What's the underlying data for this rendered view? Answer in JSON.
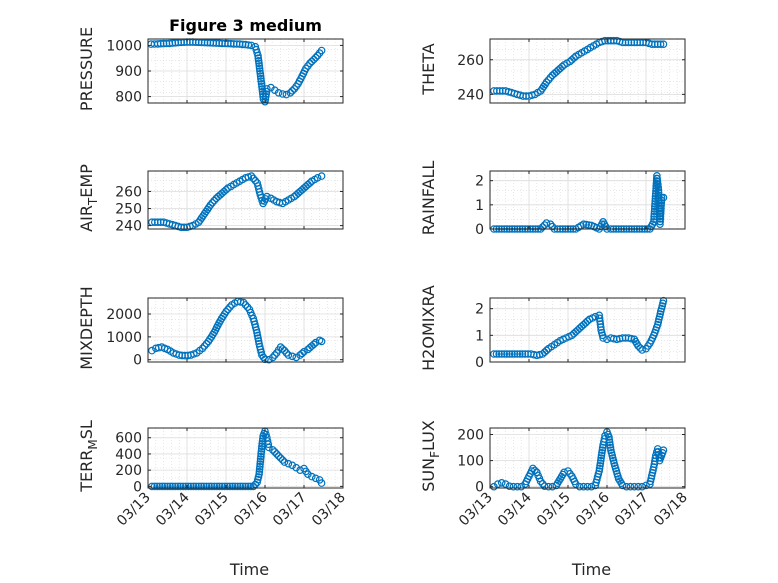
{
  "figure": {
    "background": "#ffffff",
    "marker_color": "#0072BD",
    "marker": "circle-open",
    "grid": true,
    "minor_grid": true
  },
  "chart_data": [
    {
      "type": "scatter",
      "title": "Figure 3 medium",
      "ylabel": "PRESSURE",
      "xlabel": "",
      "xlim": [
        0,
        5
      ],
      "ylim": [
        775,
        1025
      ],
      "yticks": [
        800,
        900,
        1000
      ],
      "xticks": [
        0,
        1,
        2,
        3,
        4,
        5
      ],
      "xticklabels": [],
      "series": [
        {
          "x": [
            0.08,
            0.25,
            0.4,
            0.55,
            0.7,
            0.85,
            1.0,
            1.15,
            1.3,
            1.45,
            1.6,
            1.75,
            1.9,
            2.05,
            2.2,
            2.35,
            2.5,
            2.65,
            2.75,
            2.82,
            2.87,
            2.92,
            2.96,
            3.0,
            3.05,
            3.15,
            3.25,
            3.35,
            3.45,
            3.55,
            3.65,
            3.75,
            3.85,
            3.95,
            4.05,
            4.15,
            4.25,
            4.35,
            4.45
          ],
          "y": [
            1005,
            1006,
            1007,
            1008,
            1010,
            1012,
            1013,
            1013,
            1012,
            1011,
            1010,
            1009,
            1008,
            1007,
            1006,
            1005,
            1003,
            1000,
            995,
            960,
            900,
            840,
            790,
            780,
            830,
            835,
            825,
            815,
            810,
            808,
            815,
            830,
            850,
            880,
            910,
            930,
            945,
            960,
            980
          ]
        }
      ]
    },
    {
      "type": "scatter",
      "title": "",
      "ylabel": "THETA",
      "xlabel": "",
      "xlim": [
        0,
        5
      ],
      "ylim": [
        235,
        272
      ],
      "yticks": [
        240,
        260
      ],
      "xticks": [
        0,
        1,
        2,
        3,
        4,
        5
      ],
      "xticklabels": [],
      "series": [
        {
          "x": [
            0.1,
            0.25,
            0.4,
            0.55,
            0.7,
            0.85,
            1.0,
            1.15,
            1.3,
            1.45,
            1.6,
            1.75,
            1.9,
            2.05,
            2.2,
            2.35,
            2.5,
            2.65,
            2.8,
            2.95,
            3.1,
            3.25,
            3.4,
            3.55,
            3.7,
            3.85,
            4.0,
            4.15,
            4.3,
            4.45
          ],
          "y": [
            242,
            242,
            242,
            241,
            240,
            239,
            239,
            240,
            242,
            247,
            251,
            254,
            257,
            259,
            262,
            264,
            266,
            268,
            270,
            271,
            271,
            271,
            270,
            270,
            270,
            270,
            270,
            269,
            269,
            269
          ]
        }
      ]
    },
    {
      "type": "scatter",
      "title": "",
      "ylabel": "AIR_TEMP",
      "xlabel": "",
      "xlim": [
        0,
        5
      ],
      "ylim": [
        238,
        272
      ],
      "yticks": [
        240,
        250,
        260
      ],
      "xticks": [
        0,
        1,
        2,
        3,
        4,
        5
      ],
      "xticklabels": [],
      "series": [
        {
          "x": [
            0.1,
            0.25,
            0.4,
            0.55,
            0.7,
            0.85,
            1.0,
            1.15,
            1.3,
            1.45,
            1.6,
            1.75,
            1.9,
            2.05,
            2.2,
            2.35,
            2.5,
            2.65,
            2.8,
            2.88,
            2.95,
            3.05,
            3.15,
            3.3,
            3.45,
            3.6,
            3.75,
            3.9,
            4.05,
            4.2,
            4.35,
            4.45
          ],
          "y": [
            242,
            242,
            242,
            241,
            240,
            239,
            239,
            240,
            242,
            247,
            252,
            256,
            259,
            262,
            264,
            266,
            268,
            269,
            265,
            258,
            253,
            257,
            256,
            254,
            253,
            255,
            257,
            260,
            263,
            266,
            268,
            269
          ]
        }
      ]
    },
    {
      "type": "scatter",
      "title": "",
      "ylabel": "RAINFALL",
      "xlabel": "",
      "xlim": [
        0,
        5
      ],
      "ylim": [
        0,
        2.4
      ],
      "yticks": [
        0,
        1,
        2
      ],
      "xticks": [
        0,
        1,
        2,
        3,
        4,
        5
      ],
      "xticklabels": [],
      "series": [
        {
          "x": [
            0.1,
            0.3,
            0.5,
            0.7,
            0.9,
            1.1,
            1.3,
            1.45,
            1.55,
            1.65,
            1.8,
            2.0,
            2.2,
            2.4,
            2.6,
            2.8,
            2.9,
            3.0,
            3.1,
            3.3,
            3.5,
            3.7,
            3.9,
            4.1,
            4.2,
            4.28,
            4.32,
            4.36,
            4.4,
            4.45
          ],
          "y": [
            0,
            0,
            0,
            0,
            0,
            0,
            0,
            0.25,
            0.2,
            0,
            0,
            0,
            0,
            0.2,
            0.15,
            0,
            0.3,
            0,
            0,
            0,
            0,
            0,
            0,
            0,
            0.3,
            2.2,
            1.6,
            0.2,
            1.3,
            1.3
          ]
        }
      ]
    },
    {
      "type": "scatter",
      "title": "",
      "ylabel": "MIXDEPTH",
      "xlabel": "",
      "xlim": [
        0,
        5
      ],
      "ylim": [
        -100,
        2700
      ],
      "yticks": [
        0,
        1000,
        2000
      ],
      "xticks": [
        0,
        1,
        2,
        3,
        4,
        5
      ],
      "xticklabels": [],
      "series": [
        {
          "x": [
            0.1,
            0.2,
            0.35,
            0.5,
            0.65,
            0.8,
            0.95,
            1.1,
            1.25,
            1.4,
            1.55,
            1.7,
            1.85,
            2.0,
            2.15,
            2.3,
            2.45,
            2.6,
            2.7,
            2.78,
            2.85,
            2.92,
            3.0,
            3.1,
            3.2,
            3.3,
            3.4,
            3.5,
            3.6,
            3.7,
            3.8,
            3.9,
            4.0,
            4.1,
            4.2,
            4.3,
            4.4,
            4.45
          ],
          "y": [
            400,
            500,
            550,
            450,
            300,
            200,
            180,
            200,
            300,
            500,
            800,
            1200,
            1700,
            2100,
            2400,
            2550,
            2500,
            2200,
            1800,
            1300,
            700,
            200,
            20,
            0,
            100,
            300,
            550,
            400,
            200,
            150,
            100,
            200,
            350,
            450,
            600,
            750,
            850,
            800
          ]
        }
      ]
    },
    {
      "type": "scatter",
      "title": "",
      "ylabel": "H2OMIXRA",
      "xlabel": "",
      "xlim": [
        0,
        5
      ],
      "ylim": [
        0,
        2.4
      ],
      "yticks": [
        0,
        1,
        2
      ],
      "xticks": [
        0,
        1,
        2,
        3,
        4,
        5
      ],
      "xticklabels": [],
      "series": [
        {
          "x": [
            0.1,
            0.3,
            0.5,
            0.7,
            0.9,
            1.05,
            1.2,
            1.35,
            1.5,
            1.65,
            1.8,
            1.95,
            2.1,
            2.25,
            2.4,
            2.55,
            2.7,
            2.8,
            2.85,
            2.9,
            3.0,
            3.1,
            3.25,
            3.4,
            3.55,
            3.7,
            3.8,
            3.9,
            4.0,
            4.1,
            4.2,
            4.3,
            4.38,
            4.45
          ],
          "y": [
            0.3,
            0.3,
            0.3,
            0.3,
            0.3,
            0.3,
            0.25,
            0.3,
            0.5,
            0.65,
            0.8,
            0.9,
            1.0,
            1.2,
            1.4,
            1.6,
            1.7,
            1.75,
            1.2,
            0.9,
            0.85,
            0.9,
            0.85,
            0.9,
            0.9,
            0.85,
            0.6,
            0.45,
            0.5,
            0.7,
            1.0,
            1.4,
            1.9,
            2.3
          ]
        }
      ]
    },
    {
      "type": "scatter",
      "title": "",
      "ylabel": "TERR_MSL",
      "xlabel": "Time",
      "xlim": [
        0,
        5
      ],
      "ylim": [
        -20,
        720
      ],
      "yticks": [
        0,
        200,
        400,
        600
      ],
      "xticks": [
        0,
        1,
        2,
        3,
        4,
        5
      ],
      "xticklabels": [
        "03/13",
        "03/14",
        "03/15",
        "03/16",
        "03/17",
        "03/18"
      ],
      "series": [
        {
          "x": [
            0.1,
            0.3,
            0.5,
            0.7,
            0.9,
            1.1,
            1.3,
            1.5,
            1.7,
            1.9,
            2.1,
            2.3,
            2.5,
            2.7,
            2.8,
            2.85,
            2.9,
            2.95,
            3.0,
            3.05,
            3.1,
            3.2,
            3.3,
            3.4,
            3.5,
            3.6,
            3.7,
            3.8,
            3.9,
            4.0,
            4.1,
            4.2,
            4.3,
            4.4,
            4.45
          ],
          "y": [
            0,
            0,
            0,
            0,
            0,
            0,
            0,
            0,
            0,
            0,
            0,
            0,
            0,
            0,
            50,
            150,
            400,
            620,
            680,
            600,
            480,
            450,
            400,
            350,
            300,
            280,
            260,
            230,
            200,
            220,
            150,
            120,
            100,
            80,
            40
          ]
        }
      ]
    },
    {
      "type": "scatter",
      "title": "",
      "ylabel": "SUN_FLUX",
      "xlabel": "Time",
      "xlim": [
        0,
        5
      ],
      "ylim": [
        -5,
        225
      ],
      "yticks": [
        0,
        100,
        200
      ],
      "xticks": [
        0,
        1,
        2,
        3,
        4,
        5
      ],
      "xticklabels": [
        "03/13",
        "03/14",
        "03/15",
        "03/16",
        "03/17",
        "03/18"
      ],
      "series": [
        {
          "x": [
            0.1,
            0.2,
            0.3,
            0.4,
            0.5,
            0.6,
            0.7,
            0.8,
            0.9,
            1.0,
            1.1,
            1.2,
            1.3,
            1.4,
            1.5,
            1.6,
            1.7,
            1.8,
            1.9,
            2.0,
            2.1,
            2.2,
            2.3,
            2.4,
            2.5,
            2.6,
            2.7,
            2.8,
            2.85,
            2.9,
            2.95,
            3.0,
            3.05,
            3.1,
            3.2,
            3.3,
            3.4,
            3.5,
            3.6,
            3.7,
            3.8,
            3.9,
            4.0,
            4.1,
            4.2,
            4.25,
            4.3,
            4.35,
            4.4,
            4.45
          ],
          "y": [
            0,
            10,
            15,
            10,
            2,
            0,
            0,
            0,
            10,
            40,
            70,
            55,
            20,
            2,
            0,
            0,
            5,
            30,
            55,
            60,
            40,
            10,
            0,
            0,
            0,
            0,
            5,
            60,
            110,
            160,
            195,
            210,
            190,
            140,
            80,
            30,
            5,
            0,
            0,
            0,
            0,
            0,
            5,
            10,
            75,
            120,
            145,
            100,
            120,
            140
          ]
        }
      ]
    }
  ]
}
